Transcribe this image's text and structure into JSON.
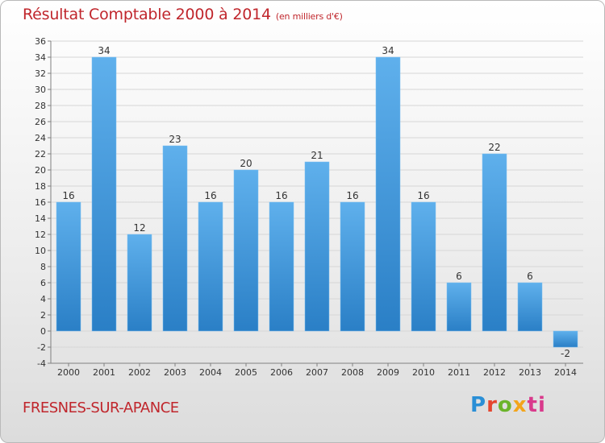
{
  "title": "Résultat Comptable 2000 à 2014",
  "subtitle": "(en milliers d'€)",
  "commune": "FRESNES-SUR-APANCE",
  "logo": {
    "p": "P",
    "r": "r",
    "o": "o",
    "x": "x",
    "i": "i",
    "t": "ti"
  },
  "colors": {
    "bar_light": "#5fb0ec",
    "bar_dark": "#2a7fc6",
    "title": "#c0262c",
    "grid": "#d6d6d6",
    "axis": "#808080"
  },
  "chart_data": {
    "type": "bar",
    "categories": [
      "2000",
      "2001",
      "2002",
      "2003",
      "2004",
      "2005",
      "2006",
      "2007",
      "2008",
      "2009",
      "2010",
      "2011",
      "2012",
      "2013",
      "2014"
    ],
    "values": [
      16,
      34,
      12,
      23,
      16,
      20,
      16,
      21,
      16,
      34,
      16,
      6,
      22,
      6,
      -2
    ],
    "title": "Résultat Comptable 2000 à 2014",
    "subtitle": "(en milliers d'€)",
    "xlabel": "",
    "ylabel": "",
    "ylim": [
      -4,
      36
    ],
    "yticks": [
      -4,
      -2,
      0,
      2,
      4,
      6,
      8,
      10,
      12,
      14,
      16,
      18,
      20,
      22,
      24,
      26,
      28,
      30,
      32,
      34,
      36
    ],
    "grid": true,
    "legend": "none"
  }
}
